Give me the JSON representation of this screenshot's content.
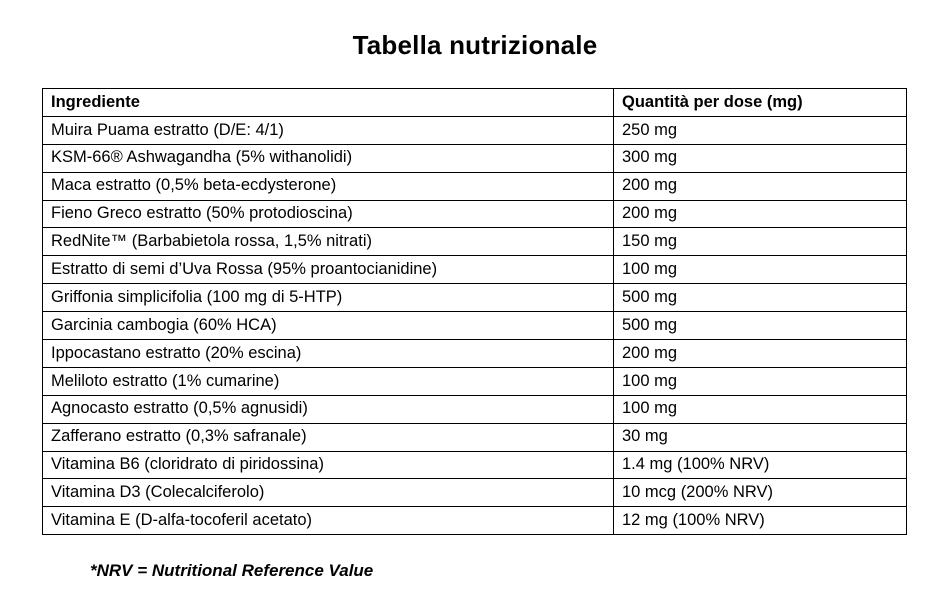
{
  "title": "Tabella nutrizionale",
  "table": {
    "columns": [
      "Ingrediente",
      "Quantità per dose (mg)"
    ],
    "rows": [
      [
        "Muira Puama estratto (D/E: 4/1)",
        "250 mg"
      ],
      [
        "KSM-66® Ashwagandha (5% withanolidi)",
        "300 mg"
      ],
      [
        "Maca estratto (0,5% beta-ecdysterone)",
        "200 mg"
      ],
      [
        "Fieno Greco estratto (50% protodioscina)",
        "200 mg"
      ],
      [
        "RedNite™ (Barbabietola rossa, 1,5% nitrati)",
        "150 mg"
      ],
      [
        "Estratto di semi d’Uva Rossa (95% proantocianidine)",
        "100 mg"
      ],
      [
        "Griffonia simplicifolia (100 mg di 5-HTP)",
        "500 mg"
      ],
      [
        "Garcinia cambogia (60% HCA)",
        "500 mg"
      ],
      [
        "Ippocastano estratto (20% escina)",
        "200 mg"
      ],
      [
        "Meliloto estratto (1% cumarine)",
        "100 mg"
      ],
      [
        "Agnocasto estratto (0,5% agnusidi)",
        "100 mg"
      ],
      [
        "Zafferano estratto (0,3% safranale)",
        "30 mg"
      ],
      [
        "Vitamina B6 (cloridrato di piridossina)",
        "1.4 mg (100% NRV)"
      ],
      [
        "Vitamina D3 (Colecalciferolo)",
        "10 mcg (200% NRV)"
      ],
      [
        "Vitamina E (D-alfa-tocoferil acetato)",
        "12 mg (100% NRV)"
      ]
    ]
  },
  "footnote": "*NRV = Nutritional Reference Value"
}
